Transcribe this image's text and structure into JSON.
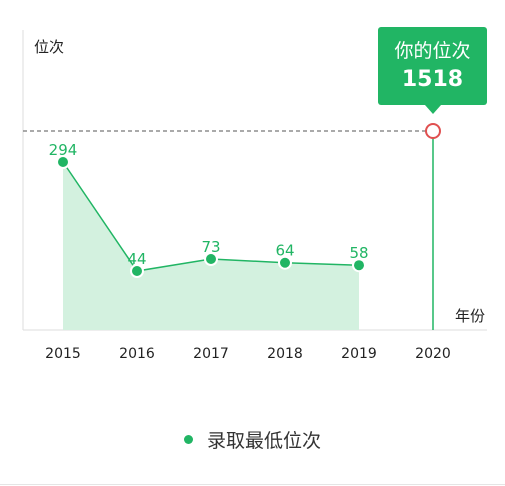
{
  "chart_data": {
    "type": "area",
    "ylabel": "位次",
    "xlabel": "年份",
    "categories": [
      "2015",
      "2016",
      "2017",
      "2018",
      "2019",
      "2020"
    ],
    "series": [
      {
        "name": "录取最低位次",
        "x": [
          "2015",
          "2016",
          "2017",
          "2018",
          "2019"
        ],
        "values": [
          294,
          44,
          73,
          64,
          58
        ]
      }
    ],
    "data_labels": [
      "294",
      "44",
      "73",
      "64",
      "58"
    ],
    "reference": {
      "label": "你的位次",
      "value": 1518,
      "value_text": "1518",
      "x": "2020",
      "style": "dashed"
    },
    "grid": false,
    "legend": "bottom-center",
    "colors": {
      "line": "#21b564",
      "fill": "#d3f1df",
      "reference_marker": "#e05050",
      "reference_line": "#777777",
      "callout_bg": "#21b564",
      "axis": "#dddddd"
    }
  },
  "legend": {
    "label": "录取最低位次"
  }
}
